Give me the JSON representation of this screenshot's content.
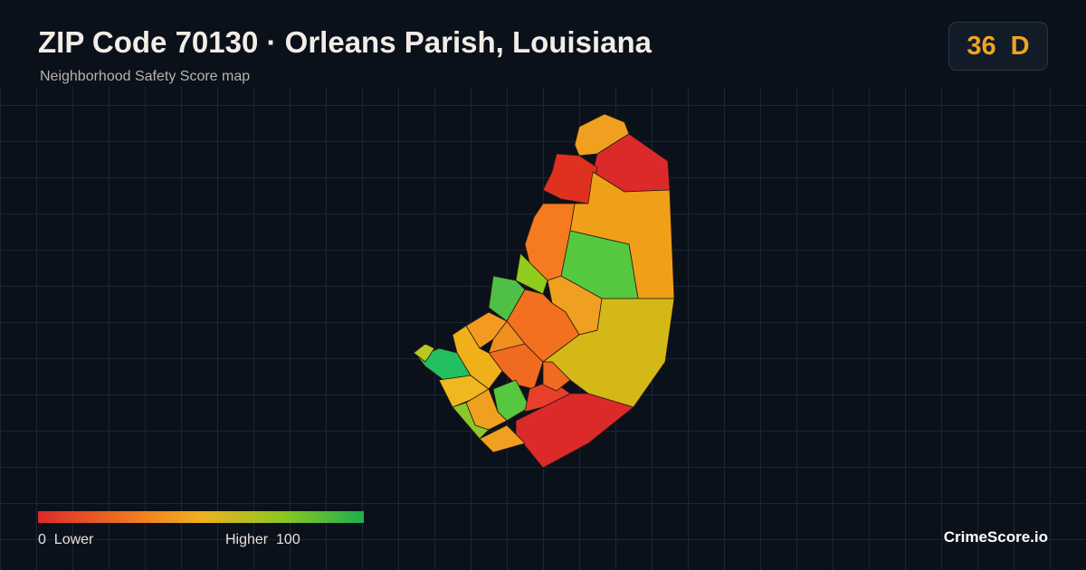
{
  "header": {
    "title": "ZIP Code 70130 · Orleans Parish, Louisiana",
    "subtitle": "Neighborhood Safety Score map"
  },
  "score": {
    "value": 36,
    "grade": "D"
  },
  "legend": {
    "min": 0,
    "min_label": "Lower",
    "max_label": "Higher",
    "max": 100
  },
  "brand": "CrimeScore.io"
}
